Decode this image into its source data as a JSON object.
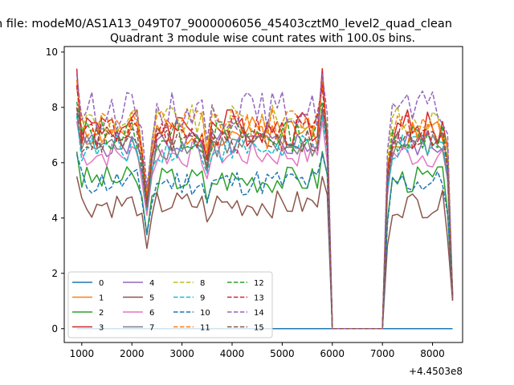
{
  "chart_data": {
    "type": "line",
    "suptitle": "n file: modeM0/AS1A13_049T07_9000006056_45403cztM0_level2_quad_clean",
    "title": "Quadrant 3 module wise count rates with 100.0s bins.",
    "xlabel": "",
    "ylabel": "",
    "x_offset_label": "+4.4503e8",
    "xlim": [
      650,
      8600
    ],
    "ylim": [
      -0.5,
      10.2
    ],
    "xticks": [
      1000,
      2000,
      3000,
      4000,
      5000,
      6000,
      7000,
      8000
    ],
    "yticks": [
      0,
      2,
      4,
      6,
      8,
      10
    ],
    "grid": false,
    "legend": {
      "placement": "lower-left",
      "columns": 4
    },
    "colors": [
      "#1f77b4",
      "#ff7f0e",
      "#2ca02c",
      "#d62728",
      "#9467bd",
      "#8c564b",
      "#e377c2",
      "#7f7f7f",
      "#bcbd22",
      "#17becf"
    ],
    "series": [
      {
        "name": "0",
        "level": 0,
        "amp": 0,
        "dip": 0,
        "spike": 0,
        "dash": false,
        "seed": 1
      },
      {
        "name": "1",
        "level": 7.1,
        "amp": 0.3,
        "dip": 2.5,
        "spike": 1.9,
        "dash": false,
        "seed": 2
      },
      {
        "name": "2",
        "level": 5.4,
        "amp": 0.25,
        "dip": 2.0,
        "spike": 1.0,
        "dash": false,
        "seed": 3
      },
      {
        "name": "3",
        "level": 7.3,
        "amp": 0.35,
        "dip": 2.9,
        "spike": 2.1,
        "dash": false,
        "seed": 4
      },
      {
        "name": "4",
        "level": 6.7,
        "amp": 0.25,
        "dip": 2.3,
        "spike": 1.3,
        "dash": false,
        "seed": 5
      },
      {
        "name": "5",
        "level": 4.5,
        "amp": 0.25,
        "dip": 1.6,
        "spike": 1.0,
        "dash": false,
        "seed": 6
      },
      {
        "name": "6",
        "level": 6.3,
        "amp": 0.25,
        "dip": 2.2,
        "spike": 1.2,
        "dash": false,
        "seed": 7
      },
      {
        "name": "7",
        "level": 6.6,
        "amp": 0.25,
        "dip": 2.3,
        "spike": 1.2,
        "dash": false,
        "seed": 8
      },
      {
        "name": "8",
        "level": 7.5,
        "amp": 0.3,
        "dip": 2.6,
        "spike": 1.3,
        "dash": true,
        "seed": 9
      },
      {
        "name": "9",
        "level": 6.5,
        "amp": 0.25,
        "dip": 2.2,
        "spike": 1.2,
        "dash": true,
        "seed": 10
      },
      {
        "name": "10",
        "level": 5.3,
        "amp": 0.25,
        "dip": 1.9,
        "spike": 1.0,
        "dash": true,
        "seed": 11
      },
      {
        "name": "11",
        "level": 7.4,
        "amp": 0.3,
        "dip": 2.6,
        "spike": 1.3,
        "dash": true,
        "seed": 12
      },
      {
        "name": "12",
        "level": 7.0,
        "amp": 0.3,
        "dip": 2.5,
        "spike": 1.2,
        "dash": true,
        "seed": 13
      },
      {
        "name": "13",
        "level": 7.1,
        "amp": 0.3,
        "dip": 2.5,
        "spike": 1.7,
        "dash": true,
        "seed": 14
      },
      {
        "name": "14",
        "level": 7.9,
        "amp": 0.35,
        "dip": 2.8,
        "spike": 1.3,
        "dash": true,
        "seed": 15
      },
      {
        "name": "15",
        "level": 6.8,
        "amp": 0.25,
        "dip": 2.4,
        "spike": 1.2,
        "dash": true,
        "seed": 16
      }
    ],
    "x_start": 900,
    "x_end": 8400,
    "x_step": 100,
    "gap_start": 6000,
    "gap_end": 7000
  }
}
